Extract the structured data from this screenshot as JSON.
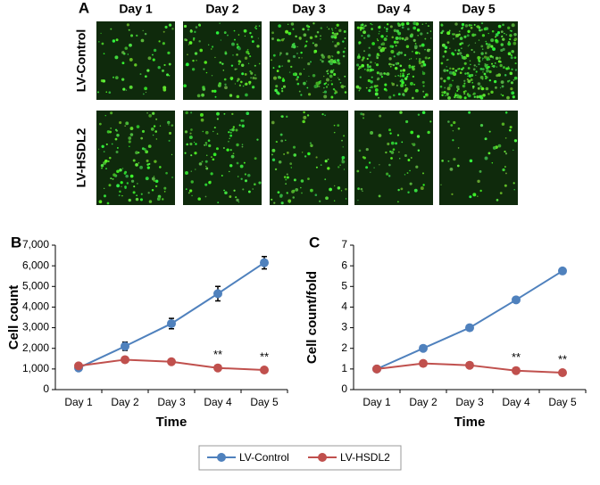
{
  "image_panel": {
    "label": "A",
    "columns": [
      "Day 1",
      "Day 2",
      "Day 3",
      "Day 4",
      "Day 5"
    ],
    "rows": [
      "LV-Control",
      "LV-HSDL2"
    ]
  },
  "chart_data": [
    {
      "type": "line",
      "panel_label": "B",
      "x_label": "Time",
      "y_label": "Cell count",
      "categories": [
        "Day 1",
        "Day 2",
        "Day 3",
        "Day 4",
        "Day 5"
      ],
      "series": [
        {
          "name": "LV-Control",
          "color": "#4f81bd",
          "values": [
            1050,
            2100,
            3200,
            4650,
            6150
          ],
          "errors": [
            60,
            200,
            250,
            350,
            300
          ]
        },
        {
          "name": "LV-HSDL2",
          "color": "#c0504d",
          "values": [
            1150,
            1450,
            1350,
            1050,
            950
          ],
          "errors": [
            50,
            50,
            50,
            60,
            50
          ]
        }
      ],
      "annotations": [
        {
          "text": "**",
          "category": "Day 4"
        },
        {
          "text": "**",
          "category": "Day 5"
        }
      ],
      "ylim": [
        0,
        7000
      ],
      "yticks": [
        0,
        {
          "value": 1000,
          "label": "1,000"
        },
        {
          "value": 2000,
          "label": "2,000"
        },
        {
          "value": 3000,
          "label": "3,000"
        },
        {
          "value": 4000,
          "label": "4,000"
        },
        {
          "value": 5000,
          "label": "5,000"
        },
        {
          "value": 6000,
          "label": "6,000"
        },
        {
          "value": 7000,
          "label": "7,000"
        }
      ],
      "grid": false
    },
    {
      "type": "line",
      "panel_label": "C",
      "x_label": "Time",
      "y_label": "Cell count/fold",
      "categories": [
        "Day 1",
        "Day 2",
        "Day 3",
        "Day 4",
        "Day 5"
      ],
      "series": [
        {
          "name": "LV-Control",
          "color": "#4f81bd",
          "values": [
            1,
            2,
            3,
            4.35,
            5.75
          ],
          "errors": [
            0.05,
            0.05,
            0.05,
            0.08,
            0.12
          ]
        },
        {
          "name": "LV-HSDL2",
          "color": "#c0504d",
          "values": [
            1,
            1.27,
            1.18,
            0.92,
            0.82
          ],
          "errors": [
            0.04,
            0.04,
            0.04,
            0.05,
            0.04
          ]
        }
      ],
      "annotations": [
        {
          "text": "**",
          "category": "Day 4"
        },
        {
          "text": "**",
          "category": "Day 5"
        }
      ],
      "ylim": [
        0,
        7
      ],
      "yticks": [
        0,
        1,
        2,
        3,
        4,
        5,
        6,
        7
      ],
      "grid": false
    }
  ]
}
